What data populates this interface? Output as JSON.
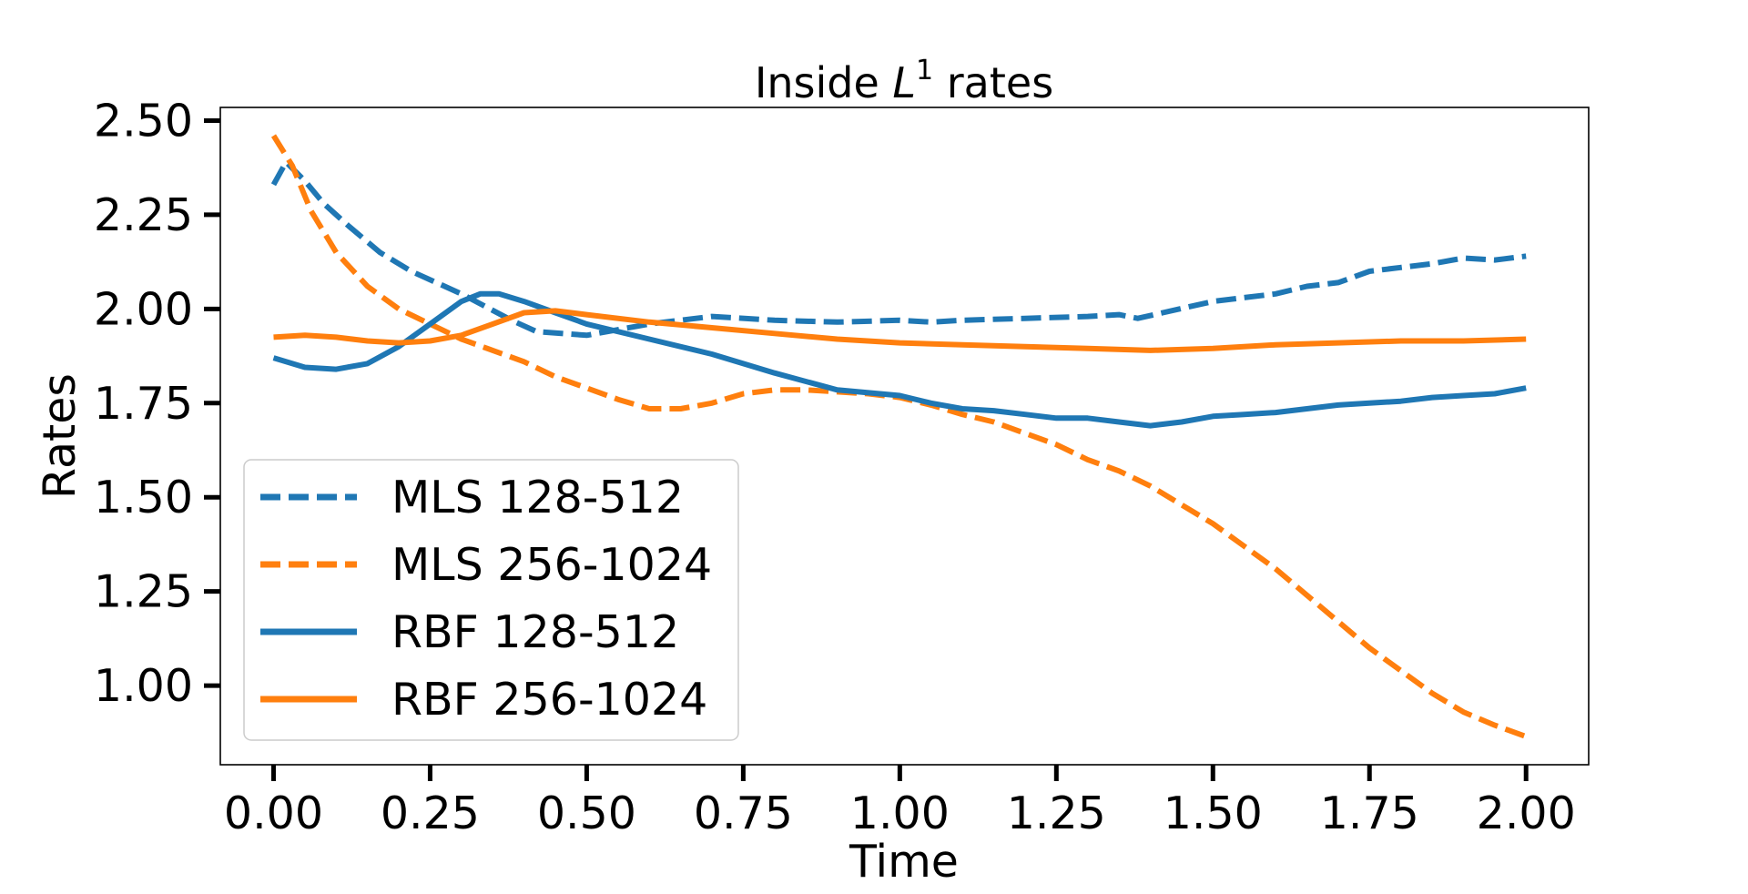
{
  "chart_data": {
    "type": "line",
    "title_prefix": "Inside ",
    "title_math_base": "L",
    "title_math_sup": "1",
    "title_suffix": " rates",
    "xlabel": "Time",
    "ylabel": "Rates",
    "xlim": [
      -0.085,
      2.1
    ],
    "ylim": [
      0.79,
      2.535
    ],
    "xticks": [
      0.0,
      0.25,
      0.5,
      0.75,
      1.0,
      1.25,
      1.5,
      1.75,
      2.0
    ],
    "xtick_labels": [
      "0.00",
      "0.25",
      "0.50",
      "0.75",
      "1.00",
      "1.25",
      "1.50",
      "1.75",
      "2.00"
    ],
    "yticks": [
      1.0,
      1.25,
      1.5,
      1.75,
      2.0,
      2.25,
      2.5
    ],
    "ytick_labels": [
      "1.00",
      "1.25",
      "1.50",
      "1.75",
      "2.00",
      "2.25",
      "2.50"
    ],
    "legend_position": "lower-left",
    "series": [
      {
        "name": "MLS 128-512",
        "color": "#1f77b4",
        "style": "dashed",
        "x": [
          0.0,
          0.02,
          0.05,
          0.08,
          0.12,
          0.17,
          0.22,
          0.3,
          0.38,
          0.42,
          0.5,
          0.6,
          0.7,
          0.8,
          0.9,
          1.0,
          1.05,
          1.1,
          1.2,
          1.3,
          1.35,
          1.38,
          1.42,
          1.5,
          1.55,
          1.6,
          1.65,
          1.7,
          1.75,
          1.8,
          1.85,
          1.9,
          1.95,
          2.0
        ],
        "y": [
          2.33,
          2.39,
          2.34,
          2.28,
          2.22,
          2.15,
          2.1,
          2.04,
          1.97,
          1.94,
          1.93,
          1.96,
          1.98,
          1.97,
          1.965,
          1.97,
          1.965,
          1.97,
          1.975,
          1.98,
          1.985,
          1.975,
          1.99,
          2.02,
          2.03,
          2.04,
          2.06,
          2.07,
          2.1,
          2.11,
          2.12,
          2.135,
          2.13,
          2.14
        ]
      },
      {
        "name": "MLS 256-1024",
        "color": "#ff7f0e",
        "style": "dashed",
        "x": [
          0.0,
          0.03,
          0.06,
          0.1,
          0.15,
          0.2,
          0.25,
          0.3,
          0.35,
          0.4,
          0.45,
          0.5,
          0.55,
          0.6,
          0.65,
          0.7,
          0.75,
          0.8,
          0.85,
          0.9,
          0.95,
          1.0,
          1.05,
          1.1,
          1.15,
          1.2,
          1.25,
          1.3,
          1.35,
          1.4,
          1.45,
          1.5,
          1.55,
          1.6,
          1.65,
          1.7,
          1.75,
          1.8,
          1.85,
          1.9,
          1.95,
          2.0
        ],
        "y": [
          2.46,
          2.38,
          2.26,
          2.15,
          2.06,
          2.0,
          1.96,
          1.92,
          1.89,
          1.86,
          1.82,
          1.79,
          1.76,
          1.735,
          1.735,
          1.75,
          1.775,
          1.785,
          1.785,
          1.78,
          1.775,
          1.765,
          1.745,
          1.72,
          1.7,
          1.67,
          1.64,
          1.6,
          1.57,
          1.53,
          1.48,
          1.43,
          1.37,
          1.31,
          1.24,
          1.17,
          1.1,
          1.04,
          0.98,
          0.93,
          0.895,
          0.865
        ]
      },
      {
        "name": "RBF 128-512",
        "color": "#1f77b4",
        "style": "solid",
        "x": [
          0.0,
          0.05,
          0.1,
          0.15,
          0.2,
          0.25,
          0.3,
          0.33,
          0.36,
          0.4,
          0.45,
          0.5,
          0.6,
          0.7,
          0.8,
          0.9,
          1.0,
          1.05,
          1.1,
          1.15,
          1.2,
          1.25,
          1.3,
          1.35,
          1.4,
          1.45,
          1.5,
          1.55,
          1.6,
          1.65,
          1.7,
          1.75,
          1.8,
          1.85,
          1.9,
          1.95,
          2.0
        ],
        "y": [
          1.87,
          1.845,
          1.84,
          1.855,
          1.9,
          1.96,
          2.02,
          2.04,
          2.04,
          2.02,
          1.99,
          1.96,
          1.92,
          1.88,
          1.83,
          1.785,
          1.77,
          1.75,
          1.735,
          1.73,
          1.72,
          1.71,
          1.71,
          1.7,
          1.69,
          1.7,
          1.715,
          1.72,
          1.725,
          1.735,
          1.745,
          1.75,
          1.755,
          1.765,
          1.77,
          1.775,
          1.79
        ]
      },
      {
        "name": "RBF 256-1024",
        "color": "#ff7f0e",
        "style": "solid",
        "x": [
          0.0,
          0.05,
          0.1,
          0.15,
          0.2,
          0.25,
          0.3,
          0.35,
          0.4,
          0.45,
          0.5,
          0.6,
          0.7,
          0.8,
          0.9,
          1.0,
          1.1,
          1.2,
          1.3,
          1.4,
          1.5,
          1.6,
          1.7,
          1.8,
          1.9,
          2.0
        ],
        "y": [
          1.925,
          1.93,
          1.925,
          1.915,
          1.91,
          1.915,
          1.93,
          1.96,
          1.99,
          1.995,
          1.985,
          1.965,
          1.95,
          1.935,
          1.92,
          1.91,
          1.905,
          1.9,
          1.895,
          1.89,
          1.895,
          1.905,
          1.91,
          1.915,
          1.915,
          1.92
        ]
      }
    ]
  }
}
